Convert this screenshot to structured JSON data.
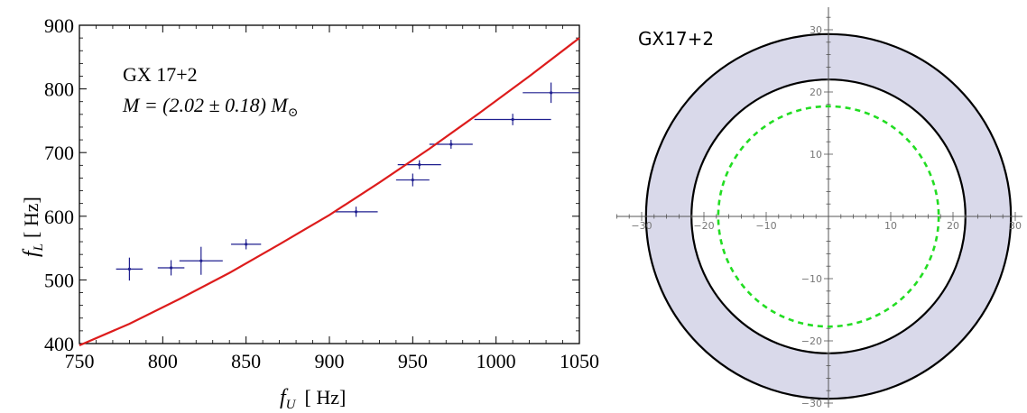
{
  "chart_data": [
    {
      "type": "scatter",
      "annotation_line1": "GX 17+2",
      "annotation_line2": "M = (2.02 ± 0.18) M",
      "xlabel": "f_U [ Hz]",
      "xlabel_main": "f",
      "xlabel_sub": "U",
      "xlabel_unit": "[ Hz]",
      "ylabel_main": "f",
      "ylabel_sub": "L",
      "ylabel_unit": "[ Hz]",
      "xlim": [
        750,
        1050
      ],
      "ylim": [
        400,
        900
      ],
      "xticks": [
        750,
        800,
        850,
        900,
        950,
        1000,
        1050
      ],
      "yticks": [
        400,
        500,
        600,
        700,
        800,
        900
      ],
      "grid": false,
      "series": [
        {
          "kind": "errorbar",
          "color": "#1f1f8f",
          "points": [
            {
              "x": 780,
              "y": 517,
              "xerr": 8,
              "yerr": 18
            },
            {
              "x": 805,
              "y": 519,
              "xerr": 8,
              "yerr": 12
            },
            {
              "x": 823,
              "y": 530,
              "xerr": 13,
              "yerr": 22
            },
            {
              "x": 850,
              "y": 556,
              "xerr": 9,
              "yerr": 8
            },
            {
              "x": 916,
              "y": 607,
              "xerr": 13,
              "yerr": 8
            },
            {
              "x": 950,
              "y": 657,
              "xerr": 10,
              "yerr": 10
            },
            {
              "x": 954,
              "y": 681,
              "xerr": 13,
              "yerr": 7
            },
            {
              "x": 973,
              "y": 713,
              "xerr": 13,
              "yerr": 7
            },
            {
              "x": 1010,
              "y": 752,
              "xerr": 23,
              "yerr": 9
            },
            {
              "x": 1033,
              "y": 794,
              "xerr": 17,
              "yerr": 16
            }
          ]
        },
        {
          "kind": "line",
          "color": "#dd1c1c",
          "x": [
            750,
            780,
            810,
            840,
            870,
            900,
            930,
            960,
            990,
            1020,
            1050
          ],
          "y": [
            393,
            431,
            470,
            511,
            556,
            602,
            653,
            706,
            762,
            820,
            880
          ]
        }
      ]
    },
    {
      "type": "area",
      "title": "GX17+2",
      "xlim": [
        -30,
        30
      ],
      "ylim": [
        -30,
        30
      ],
      "xticks": [
        -30,
        -20,
        -10,
        10,
        20,
        30
      ],
      "yticks": [
        -30,
        -20,
        -10,
        10,
        20,
        30
      ],
      "grid": false,
      "rings": [
        {
          "r_outer": 29.3,
          "r_inner": 22.0,
          "fill": "#d9d9ea",
          "stroke": "#000000"
        },
        {
          "r": 17.7,
          "stroke": "#22dd22",
          "dashed": true
        }
      ]
    }
  ]
}
